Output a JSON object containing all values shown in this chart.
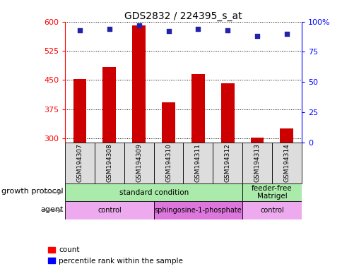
{
  "title": "GDS2832 / 224395_s_at",
  "samples": [
    "GSM194307",
    "GSM194308",
    "GSM194309",
    "GSM194310",
    "GSM194311",
    "GSM194312",
    "GSM194313",
    "GSM194314"
  ],
  "counts": [
    452,
    483,
    590,
    393,
    465,
    441,
    302,
    325
  ],
  "percentile_ranks": [
    93,
    94,
    97,
    92,
    94,
    93,
    88,
    90
  ],
  "y_min": 290,
  "y_max": 600,
  "y_ticks": [
    300,
    375,
    450,
    525,
    600
  ],
  "y_right_ticks": [
    0,
    25,
    50,
    75,
    100
  ],
  "bar_color": "#cc0000",
  "dot_color": "#2222aa",
  "bar_width": 0.45,
  "figsize": [
    4.85,
    3.84
  ],
  "dpi": 100,
  "growth_protocol_groups": [
    {
      "label": "standard condition",
      "start": 0,
      "end": 6,
      "color": "#aaeaaa"
    },
    {
      "label": "feeder-free\nMatrigel",
      "start": 6,
      "end": 8,
      "color": "#aaeaaa"
    }
  ],
  "agent_groups": [
    {
      "label": "control",
      "start": 0,
      "end": 3,
      "color": "#eeaaee"
    },
    {
      "label": "sphingosine-1-phosphate",
      "start": 3,
      "end": 6,
      "color": "#dd77dd"
    },
    {
      "label": "control",
      "start": 6,
      "end": 8,
      "color": "#eeaaee"
    }
  ]
}
